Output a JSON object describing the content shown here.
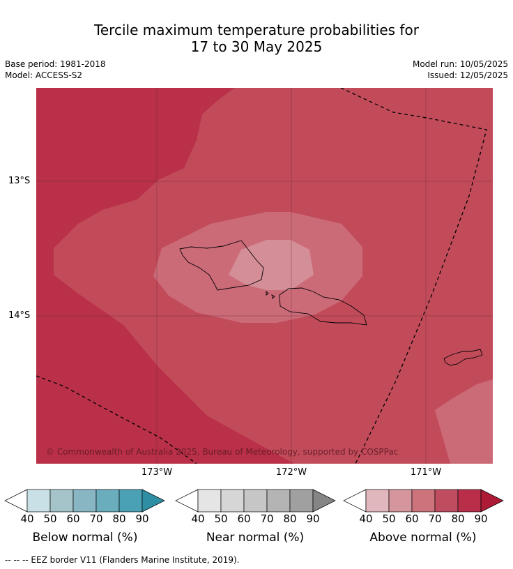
{
  "title_line1": "Tercile maximum temperature probabilities for",
  "title_line2": "17 to 30 May 2025",
  "meta": {
    "base_period": "Base period: 1981-2018",
    "model": "Model: ACCESS-S2",
    "model_run": "Model run: 10/05/2025",
    "issued": "Issued: 12/05/2025"
  },
  "map": {
    "lat_labels": [
      "13°S",
      "14°S"
    ],
    "lon_labels": [
      "173°W",
      "172°W",
      "171°W"
    ],
    "copyright": "© Commonwealth of Australia 2025, Bureau of Meteorology, supported by COSPPac",
    "colors": {
      "above_80_90": "#b93048",
      "above_70_80": "#c24b5a",
      "above_60_70": "#cc6b78",
      "above_50_60": "#d48e97",
      "border": "#000000"
    }
  },
  "colorbars": [
    {
      "label": "Below normal (%)",
      "ticks": [
        "40",
        "50",
        "60",
        "70",
        "80",
        "90"
      ],
      "colors": [
        "#ffffff",
        "#c8e0e6",
        "#a5c4c9",
        "#88b6c2",
        "#6aaebd",
        "#4aa0b4",
        "#2e8ea3"
      ]
    },
    {
      "label": "Near normal (%)",
      "ticks": [
        "40",
        "50",
        "60",
        "70",
        "80",
        "90"
      ],
      "colors": [
        "#ffffff",
        "#e5e5e5",
        "#d6d6d6",
        "#c6c6c6",
        "#b4b4b4",
        "#a0a0a0",
        "#858585"
      ]
    },
    {
      "label": "Above normal (%)",
      "ticks": [
        "40",
        "50",
        "60",
        "70",
        "80",
        "90"
      ],
      "colors": [
        "#ffffff",
        "#e0b7bc",
        "#d4959c",
        "#cc737c",
        "#c04d5f",
        "#b92f49",
        "#ad1b36"
      ]
    }
  ],
  "footnote": "--  --  -- EEZ border V11 (Flanders Marine Institute, 2019)."
}
